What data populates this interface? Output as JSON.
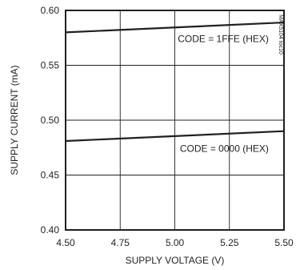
{
  "chart_data": {
    "type": "line",
    "title": "",
    "xlabel": "SUPPLY VOLTAGE (V)",
    "ylabel": "SUPPLY CURRENT (mA)",
    "xlim": [
      4.5,
      5.5
    ],
    "ylim": [
      0.4,
      0.6
    ],
    "x_ticks": [
      4.5,
      4.75,
      5.0,
      5.25,
      5.5
    ],
    "x_tick_labels": [
      "4.50",
      "4.75",
      "5.00",
      "5.25",
      "5.50"
    ],
    "y_ticks": [
      0.4,
      0.45,
      0.5,
      0.55,
      0.6
    ],
    "y_tick_labels": [
      "0.40",
      "0.45",
      "0.50",
      "0.55",
      "0.60"
    ],
    "grid": true,
    "legend": "none",
    "series": [
      {
        "label": "CODE = 1FFE (HEX)",
        "x": [
          4.5,
          5.5
        ],
        "y": [
          0.58,
          0.589
        ]
      },
      {
        "label": "CODE = 0000 (HEX)",
        "x": [
          4.5,
          5.5
        ],
        "y": [
          0.481,
          0.49
        ]
      }
    ],
    "annotations": [
      {
        "text": "CODE = 1FFE (HEX)",
        "x": 5.43,
        "y": 0.574,
        "anchor": "end"
      },
      {
        "text": "CODE = 0000 (HEX)",
        "x": 5.43,
        "y": 0.474,
        "anchor": "end"
      }
    ],
    "figure_id": "MAX5104 toc10"
  }
}
